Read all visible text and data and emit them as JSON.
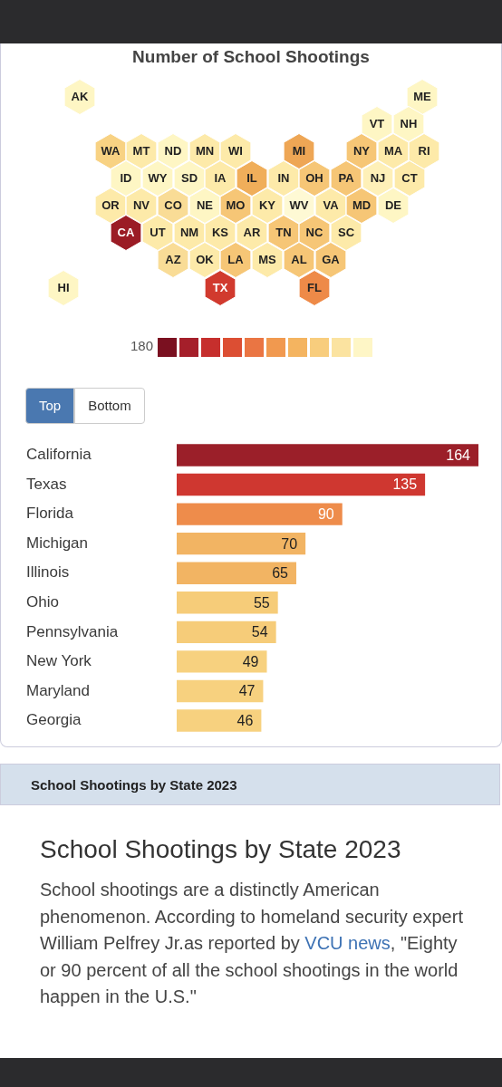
{
  "chart_data": [
    {
      "type": "other",
      "title": "Number of School Shootings",
      "categories": [
        "AK",
        "ME",
        "VT",
        "NH",
        "WA",
        "MT",
        "ND",
        "MN",
        "WI",
        "MI",
        "NY",
        "MA",
        "RI",
        "ID",
        "WY",
        "SD",
        "IA",
        "IL",
        "IN",
        "OH",
        "PA",
        "NJ",
        "CT",
        "OR",
        "NV",
        "CO",
        "NE",
        "MO",
        "KY",
        "WV",
        "VA",
        "MD",
        "DE",
        "CA",
        "UT",
        "NM",
        "KS",
        "AR",
        "TN",
        "NC",
        "SC",
        "AZ",
        "OK",
        "LA",
        "MS",
        "AL",
        "GA",
        "HI",
        "TX",
        "FL"
      ],
      "colors": [
        "#fef6c4",
        "#fef6c4",
        "#fef6c4",
        "#fef6c4",
        "#f8d283",
        "#fdeaa9",
        "#fef6c4",
        "#fdeaa9",
        "#fdeaa9",
        "#eea655",
        "#f6c676",
        "#fdeaa9",
        "#fdeaa9",
        "#fef6c4",
        "#fef6c4",
        "#fef6c4",
        "#fdeaa9",
        "#f0ae5a",
        "#fdeaa9",
        "#f6c676",
        "#f6c676",
        "#fef0b8",
        "#fdeaa9",
        "#fdeaa9",
        "#fdeaa9",
        "#f9dc96",
        "#fef6c4",
        "#f6c676",
        "#fdeaa9",
        "#fef9d4",
        "#fdeaa9",
        "#f6c676",
        "#fef6c4",
        "#9b1c25",
        "#fdeaa9",
        "#fdeaa9",
        "#fdeaa9",
        "#fdeaa9",
        "#f6c676",
        "#f6c676",
        "#fdeaa9",
        "#f9dc96",
        "#fdeaa9",
        "#f6c676",
        "#fdeaa9",
        "#f6c676",
        "#f6c676",
        "#fef6c4",
        "#d13a2e",
        "#ee8a48"
      ],
      "annotations": [
        "180"
      ]
    },
    {
      "type": "bar",
      "orientation": "horizontal",
      "categories": [
        "California",
        "Texas",
        "Florida",
        "Michigan",
        "Illinois",
        "Ohio",
        "Pennsylvania",
        "New York",
        "Maryland",
        "Georgia"
      ],
      "values": [
        164,
        135,
        90,
        70,
        65,
        55,
        54,
        49,
        47,
        46
      ],
      "colors": [
        "#9b1f29",
        "#cf3730",
        "#ee8c4b",
        "#f2b463",
        "#f2b463",
        "#f6cc79",
        "#f6cc79",
        "#f7d17f",
        "#f7d17f",
        "#f7d17f"
      ],
      "data_labels": true,
      "tick_labels": "y",
      "grid": false,
      "legend": false,
      "annotations": [
        "Top",
        "Bottom"
      ]
    },
    {
      "type": "other",
      "title": "School Shootings by State 2023",
      "subtitle": "School Shootings by State 2023",
      "annotations": [
        "School shootings are a distinctly American phenomenon. According to homeland security expert William Pelfrey Jr.as reported by ",
        "VCU news",
        ", \"Eighty or 90 percent of all the school shootings in the world happen in the U.S.\""
      ]
    }
  ]
}
